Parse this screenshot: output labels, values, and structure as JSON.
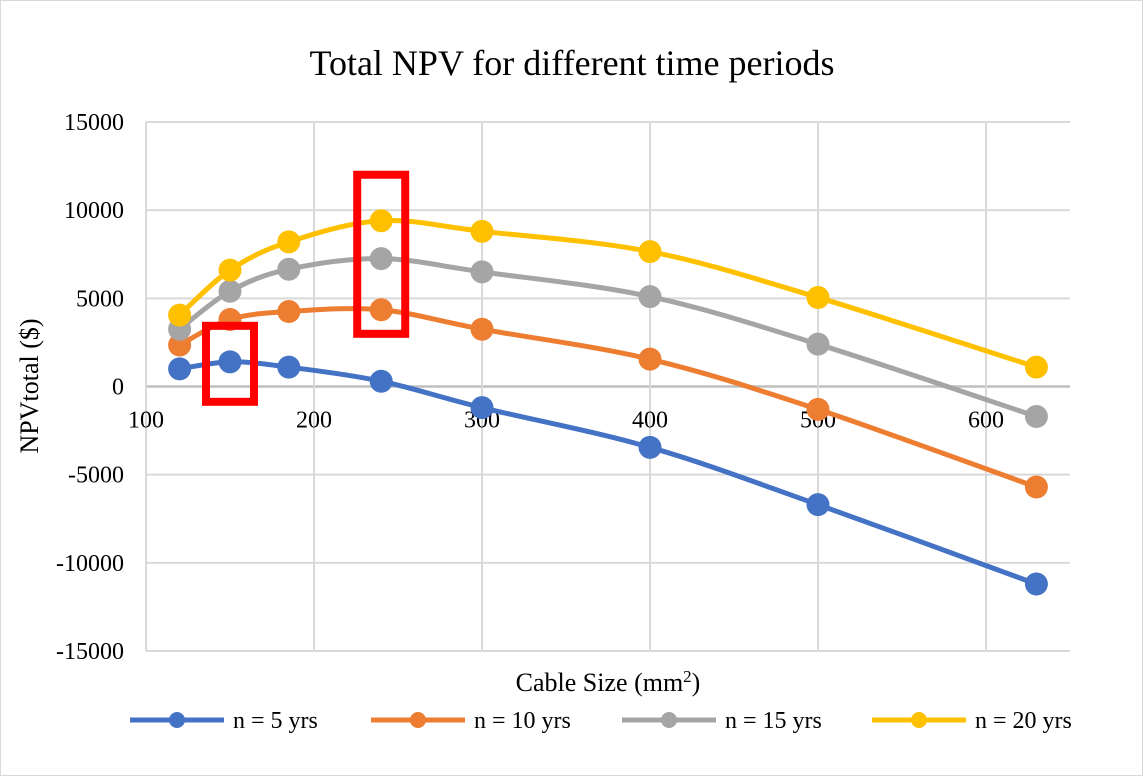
{
  "chart_data": {
    "type": "line",
    "title": "Total NPV for different time periods",
    "xlabel": "Cable Size (mm",
    "xlabel_sup": "2",
    "xlabel_end": ")",
    "ylabel": "NPVtotal ($)",
    "xlim": [
      100,
      650
    ],
    "ylim": [
      -15000,
      15000
    ],
    "xticks": [
      100,
      200,
      300,
      400,
      500,
      600
    ],
    "yticks": [
      15000,
      10000,
      5000,
      0,
      -5000,
      -10000,
      -15000
    ],
    "grid": true,
    "smooth": true,
    "legend_position": "bottom",
    "x": [
      120,
      150,
      185,
      240,
      300,
      400,
      500,
      630
    ],
    "series": [
      {
        "name": "n = 5 yrs",
        "color": "#4472C4",
        "values": [
          1000,
          1400,
          1100,
          300,
          -1200,
          -3450,
          -6700,
          -11200
        ]
      },
      {
        "name": "n = 10 yrs",
        "color": "#ED7D31",
        "values": [
          2350,
          3800,
          4250,
          4350,
          3250,
          1550,
          -1300,
          -5700
        ]
      },
      {
        "name": "n = 15 yrs",
        "color": "#A5A5A5",
        "values": [
          3250,
          5400,
          6650,
          7250,
          6500,
          5100,
          2400,
          -1700
        ]
      },
      {
        "name": "n = 20 yrs",
        "color": "#FFC000",
        "values": [
          4050,
          6600,
          8200,
          9400,
          8800,
          7650,
          5050,
          1100
        ]
      }
    ],
    "highlight_boxes": [
      {
        "x": 150,
        "series": [
          "n = 5 yrs"
        ],
        "color": "#FF0000"
      },
      {
        "x": 240,
        "series": [
          "n = 10 yrs",
          "n = 15 yrs",
          "n = 20 yrs"
        ],
        "color": "#FF0000"
      }
    ]
  }
}
